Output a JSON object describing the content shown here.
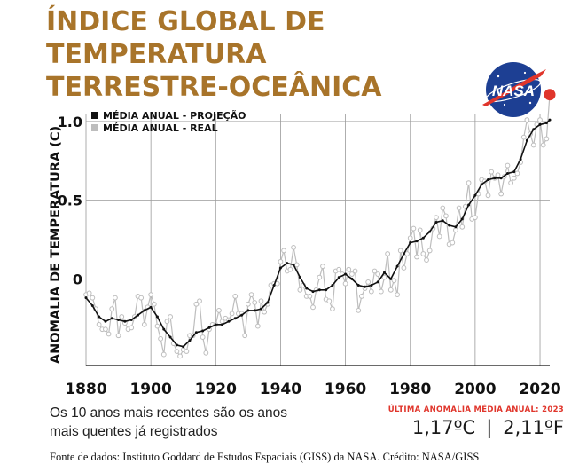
{
  "title_lines": [
    "ÍNDICE GLOBAL DE",
    "TEMPERATURA",
    "TERRESTRE-OCEÂNICA"
  ],
  "logo": {
    "text": "NASA",
    "colors": {
      "globe": "#1d3f93",
      "vector": "#e0352b",
      "text": "#ffffff"
    }
  },
  "note": "Os 10 anos mais recentes são os anos mais quentes já registrados",
  "last_anomaly": {
    "label": "ÚLTIMA ANOMALIA MÉDIA ANUAL:  2023",
    "celsius": "1,17ºC",
    "separator": "|",
    "fahrenheit": "2,11ºF"
  },
  "source": "Fonte de dados: Instituto Goddard de Estudos Espaciais (GISS) da NASA. Crédito: NASA/GISS",
  "colors": {
    "title": "#a8742a",
    "smooth_line": "#111111",
    "annual_line": "#bdbdbd",
    "highlight": "#e0352b",
    "grid": "#9a9a9a"
  },
  "chart_data": {
    "type": "line",
    "ylabel": "ANOMALIA DE TEMPERATURA (C)",
    "xlim": [
      1880,
      2023
    ],
    "ylim": [
      -0.55,
      1.05
    ],
    "x_ticks": [
      1880,
      1900,
      1920,
      1940,
      1960,
      1980,
      2000,
      2020
    ],
    "y_ticks": [
      {
        "value": 1.0,
        "label": "1.0"
      },
      {
        "value": 0.5,
        "label": "0.5"
      },
      {
        "value": 0,
        "label": "0"
      }
    ],
    "grid": true,
    "legend_position": "top-left",
    "series": [
      {
        "name": "MÉDIA ANUAL - PROJEÇÃO",
        "color": "#111111",
        "x": [
          1880,
          1882,
          1884,
          1886,
          1888,
          1890,
          1892,
          1894,
          1896,
          1898,
          1900,
          1902,
          1904,
          1906,
          1908,
          1910,
          1912,
          1914,
          1916,
          1918,
          1920,
          1922,
          1924,
          1926,
          1928,
          1930,
          1932,
          1934,
          1936,
          1938,
          1940,
          1942,
          1944,
          1946,
          1948,
          1950,
          1952,
          1954,
          1956,
          1958,
          1960,
          1962,
          1964,
          1966,
          1968,
          1970,
          1972,
          1974,
          1976,
          1978,
          1980,
          1982,
          1984,
          1986,
          1988,
          1990,
          1992,
          1994,
          1996,
          1998,
          2000,
          2002,
          2004,
          2006,
          2008,
          2010,
          2012,
          2014,
          2016,
          2018,
          2020,
          2022,
          2023
        ],
        "y": [
          -0.12,
          -0.17,
          -0.24,
          -0.27,
          -0.25,
          -0.26,
          -0.27,
          -0.26,
          -0.23,
          -0.2,
          -0.18,
          -0.24,
          -0.32,
          -0.37,
          -0.42,
          -0.43,
          -0.39,
          -0.34,
          -0.33,
          -0.31,
          -0.29,
          -0.29,
          -0.27,
          -0.25,
          -0.23,
          -0.2,
          -0.2,
          -0.19,
          -0.15,
          -0.04,
          0.07,
          0.1,
          0.09,
          0.01,
          -0.06,
          -0.08,
          -0.07,
          -0.07,
          -0.04,
          0.01,
          0.03,
          0.0,
          -0.04,
          -0.05,
          -0.04,
          -0.02,
          0.04,
          0.0,
          0.08,
          0.16,
          0.23,
          0.24,
          0.26,
          0.3,
          0.36,
          0.37,
          0.34,
          0.33,
          0.38,
          0.47,
          0.53,
          0.6,
          0.63,
          0.64,
          0.64,
          0.67,
          0.68,
          0.76,
          0.88,
          0.95,
          0.98,
          0.99,
          1.01
        ]
      },
      {
        "name": "MÉDIA ANUAL - REAL",
        "color": "#bdbdbd",
        "x": [
          1880,
          1881,
          1882,
          1883,
          1884,
          1885,
          1886,
          1887,
          1888,
          1889,
          1890,
          1891,
          1892,
          1893,
          1894,
          1895,
          1896,
          1897,
          1898,
          1899,
          1900,
          1901,
          1902,
          1903,
          1904,
          1905,
          1906,
          1907,
          1908,
          1909,
          1910,
          1911,
          1912,
          1913,
          1914,
          1915,
          1916,
          1917,
          1918,
          1919,
          1920,
          1921,
          1922,
          1923,
          1924,
          1925,
          1926,
          1927,
          1928,
          1929,
          1930,
          1931,
          1932,
          1933,
          1934,
          1935,
          1936,
          1937,
          1938,
          1939,
          1940,
          1941,
          1942,
          1943,
          1944,
          1945,
          1946,
          1947,
          1948,
          1949,
          1950,
          1951,
          1952,
          1953,
          1954,
          1955,
          1956,
          1957,
          1958,
          1959,
          1960,
          1961,
          1962,
          1963,
          1964,
          1965,
          1966,
          1967,
          1968,
          1969,
          1970,
          1971,
          1972,
          1973,
          1974,
          1975,
          1976,
          1977,
          1978,
          1979,
          1980,
          1981,
          1982,
          1983,
          1984,
          1985,
          1986,
          1987,
          1988,
          1989,
          1990,
          1991,
          1992,
          1993,
          1994,
          1995,
          1996,
          1997,
          1998,
          1999,
          2000,
          2001,
          2002,
          2003,
          2004,
          2005,
          2006,
          2007,
          2008,
          2009,
          2010,
          2011,
          2012,
          2013,
          2014,
          2015,
          2016,
          2017,
          2018,
          2019,
          2020,
          2021,
          2022,
          2023
        ],
        "y": [
          -0.1,
          -0.09,
          -0.12,
          -0.19,
          -0.29,
          -0.32,
          -0.32,
          -0.35,
          -0.19,
          -0.12,
          -0.36,
          -0.24,
          -0.28,
          -0.32,
          -0.31,
          -0.24,
          -0.11,
          -0.12,
          -0.29,
          -0.18,
          -0.1,
          -0.16,
          -0.3,
          -0.38,
          -0.48,
          -0.27,
          -0.24,
          -0.41,
          -0.46,
          -0.49,
          -0.45,
          -0.46,
          -0.36,
          -0.36,
          -0.16,
          -0.14,
          -0.37,
          -0.47,
          -0.32,
          -0.29,
          -0.29,
          -0.2,
          -0.27,
          -0.25,
          -0.26,
          -0.22,
          -0.11,
          -0.22,
          -0.22,
          -0.36,
          -0.16,
          -0.1,
          -0.15,
          -0.3,
          -0.14,
          -0.21,
          -0.16,
          -0.04,
          -0.03,
          -0.03,
          0.11,
          0.18,
          0.05,
          0.06,
          0.2,
          0.09,
          -0.07,
          -0.04,
          -0.11,
          -0.11,
          -0.18,
          -0.07,
          0.01,
          0.08,
          -0.13,
          -0.14,
          -0.19,
          0.05,
          0.06,
          0.03,
          -0.03,
          0.06,
          0.03,
          0.05,
          -0.2,
          -0.11,
          -0.06,
          -0.02,
          -0.08,
          0.05,
          0.03,
          -0.08,
          0.01,
          0.16,
          -0.07,
          -0.01,
          -0.1,
          0.18,
          0.07,
          0.16,
          0.26,
          0.32,
          0.14,
          0.31,
          0.16,
          0.12,
          0.18,
          0.32,
          0.39,
          0.27,
          0.45,
          0.4,
          0.22,
          0.23,
          0.31,
          0.45,
          0.33,
          0.46,
          0.61,
          0.38,
          0.39,
          0.54,
          0.63,
          0.62,
          0.53,
          0.68,
          0.64,
          0.66,
          0.54,
          0.65,
          0.72,
          0.61,
          0.64,
          0.67,
          0.74,
          0.9,
          1.01,
          0.92,
          0.85,
          0.98,
          1.01,
          0.85,
          0.89,
          1.17
        ]
      }
    ]
  }
}
